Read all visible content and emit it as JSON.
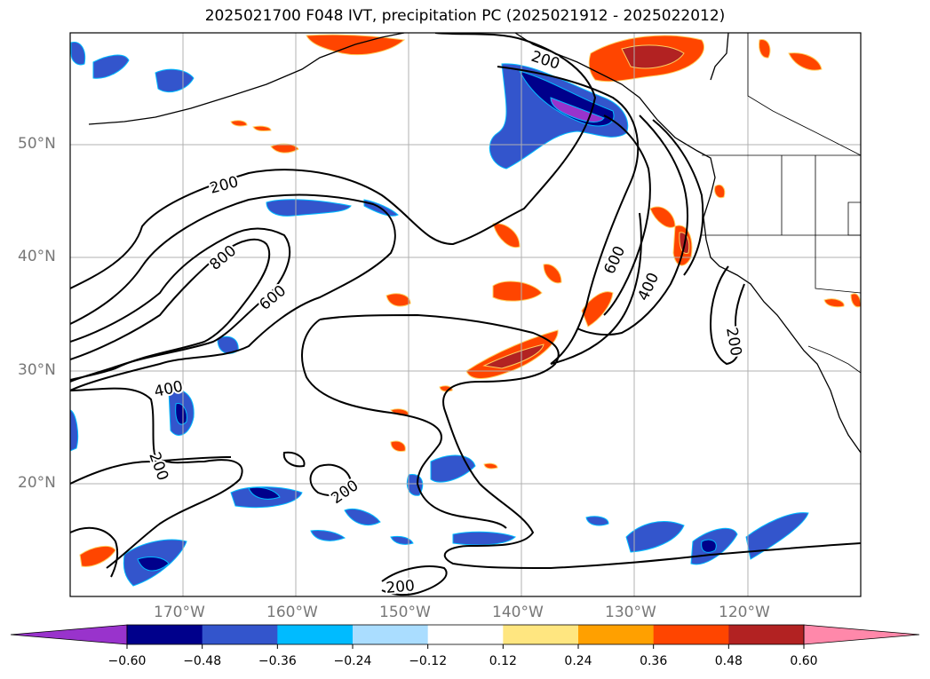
{
  "title": "2025021700 F048 IVT, precipitation PC (2025021912 - 2025022012)",
  "lat_labels": [
    "50°N",
    "40°N",
    "30°N",
    "20°N"
  ],
  "lon_labels": [
    "170°W",
    "160°W",
    "150°W",
    "140°W",
    "130°W",
    "120°W"
  ],
  "contour_labels": [
    {
      "text": "200",
      "name": "contour-label-200-west"
    },
    {
      "text": "800",
      "name": "contour-label-800"
    },
    {
      "text": "600",
      "name": "contour-label-600-west"
    },
    {
      "text": "400",
      "name": "contour-label-400-west"
    },
    {
      "text": "200",
      "name": "contour-label-200-southwest"
    },
    {
      "text": "200",
      "name": "contour-label-200-south-central"
    },
    {
      "text": "200",
      "name": "contour-label-200-south"
    },
    {
      "text": "200",
      "name": "contour-label-200-north"
    },
    {
      "text": "600",
      "name": "contour-label-600-east"
    },
    {
      "text": "400",
      "name": "contour-label-400-east"
    },
    {
      "text": "200",
      "name": "contour-label-200-coast"
    }
  ],
  "colorbar": {
    "tick_labels": [
      "−0.60",
      "−0.48",
      "−0.36",
      "−0.24",
      "−0.12",
      "0.12",
      "0.24",
      "0.36",
      "0.48",
      "0.60"
    ],
    "colors": [
      "#9933cc",
      "#00008b",
      "#3355cc",
      "#00bbff",
      "#aaddff",
      "#ffffff",
      "#ffe680",
      "#ffa000",
      "#ff4500",
      "#b22222",
      "#ff88aa"
    ]
  },
  "colors": {
    "contour": "#000000",
    "gridline": "#b0b0b0",
    "coastline": "#000000",
    "axis_label": "#777777"
  }
}
